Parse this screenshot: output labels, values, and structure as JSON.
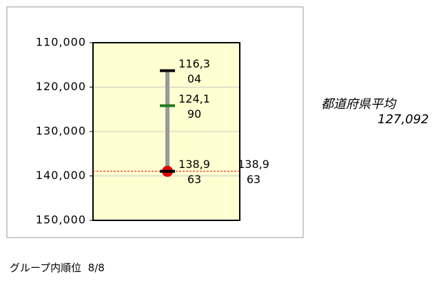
{
  "chart_data": {
    "type": "range",
    "ylim": [
      110000,
      150000
    ],
    "inverted": true,
    "yticks": [
      {
        "value": 110000,
        "label": "110,000"
      },
      {
        "value": 120000,
        "label": "120,000"
      },
      {
        "value": 130000,
        "label": "130,000"
      },
      {
        "value": 140000,
        "label": "140,000"
      },
      {
        "value": 150000,
        "label": "150,000"
      }
    ],
    "grid": true,
    "values": [
      116304,
      124190,
      138963
    ],
    "value_labels": [
      "116,304",
      "124,190",
      "138,963"
    ],
    "colors": [
      "#000000",
      "#1f7a1f",
      "#000000"
    ],
    "point": {
      "value": 138963,
      "label": "138,963",
      "color": "#e00000"
    },
    "average": {
      "name": "都道府県平均",
      "label": "127,092"
    },
    "rank": {
      "name": "グループ内順位",
      "label": "8/8"
    }
  }
}
